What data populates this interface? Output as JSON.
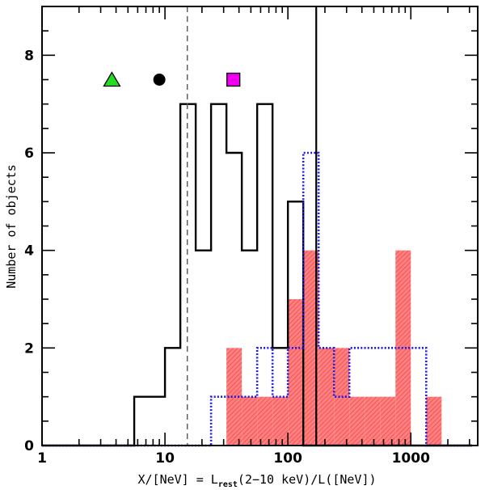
{
  "chart_data": {
    "type": "histogram",
    "x_scale": "log",
    "xlim": [
      1,
      3500
    ],
    "ylim": [
      0,
      9
    ],
    "xlabel": {
      "prefix": "X/[NeV] = L",
      "sub": "rest",
      "suffix": "(2−10 keV)/L([NeV])"
    },
    "ylabel": "Number of objects",
    "x_ticks": [
      {
        "value": 1,
        "label": "1"
      },
      {
        "value": 10,
        "label": "10"
      },
      {
        "value": 100,
        "label": "100"
      },
      {
        "value": 1000,
        "label": "1000"
      }
    ],
    "y_ticks": [
      {
        "value": 0,
        "label": "0"
      },
      {
        "value": 2,
        "label": "2"
      },
      {
        "value": 4,
        "label": "4"
      },
      {
        "value": 6,
        "label": "6"
      },
      {
        "value": 8,
        "label": "8"
      }
    ],
    "bin_edges_log10": [
      -0.5,
      -0.375,
      -0.25,
      -0.125,
      0,
      0.125,
      0.25,
      0.375,
      0.5,
      0.625,
      0.75,
      0.875,
      1,
      1.125,
      1.25,
      1.375,
      1.5,
      1.625,
      1.75,
      1.875,
      2,
      2.125,
      2.25,
      2.375,
      2.5,
      2.625,
      2.75,
      2.875,
      3,
      3.125,
      3.25,
      3.375,
      3.5
    ],
    "series": [
      {
        "name": "solid black",
        "style": "step-solid",
        "color": "#000000",
        "values": [
          0,
          0,
          0,
          0,
          0,
          0,
          0,
          0,
          0,
          0,
          1,
          1,
          2,
          7,
          4,
          7,
          6,
          4,
          7,
          2,
          5,
          0,
          0,
          0,
          0,
          0,
          0,
          0,
          0,
          0,
          0,
          0
        ]
      },
      {
        "name": "dotted blue",
        "style": "step-dotted",
        "color": "#1a1ae6",
        "values": [
          0,
          0,
          0,
          0,
          0,
          0,
          0,
          0,
          0,
          0,
          0,
          0,
          0,
          0,
          0,
          1,
          1,
          1,
          2,
          1,
          2,
          6,
          2,
          1,
          2,
          2,
          2,
          2,
          2,
          0,
          0,
          0
        ]
      },
      {
        "name": "red hatched",
        "style": "filled-hatched",
        "color": "#ff5555",
        "values": [
          0,
          0,
          0,
          0,
          0,
          0,
          0,
          0,
          0,
          0,
          0,
          0,
          0,
          0,
          0,
          0,
          2,
          1,
          1,
          1,
          3,
          4,
          2,
          2,
          1,
          1,
          1,
          4,
          0,
          1,
          0,
          0
        ]
      }
    ],
    "vlines": [
      {
        "x": 15.2,
        "style": "dashed",
        "color": "#555555"
      },
      {
        "x": 170,
        "style": "solid",
        "color": "#000000"
      }
    ],
    "markers": [
      {
        "shape": "triangle",
        "x": 3.7,
        "y": 7.5,
        "color": "#22dd22"
      },
      {
        "shape": "circle",
        "x": 9.0,
        "y": 7.5,
        "color": "#000000"
      },
      {
        "shape": "square",
        "x": 36,
        "y": 7.5,
        "color": "#ee00ee"
      }
    ]
  }
}
